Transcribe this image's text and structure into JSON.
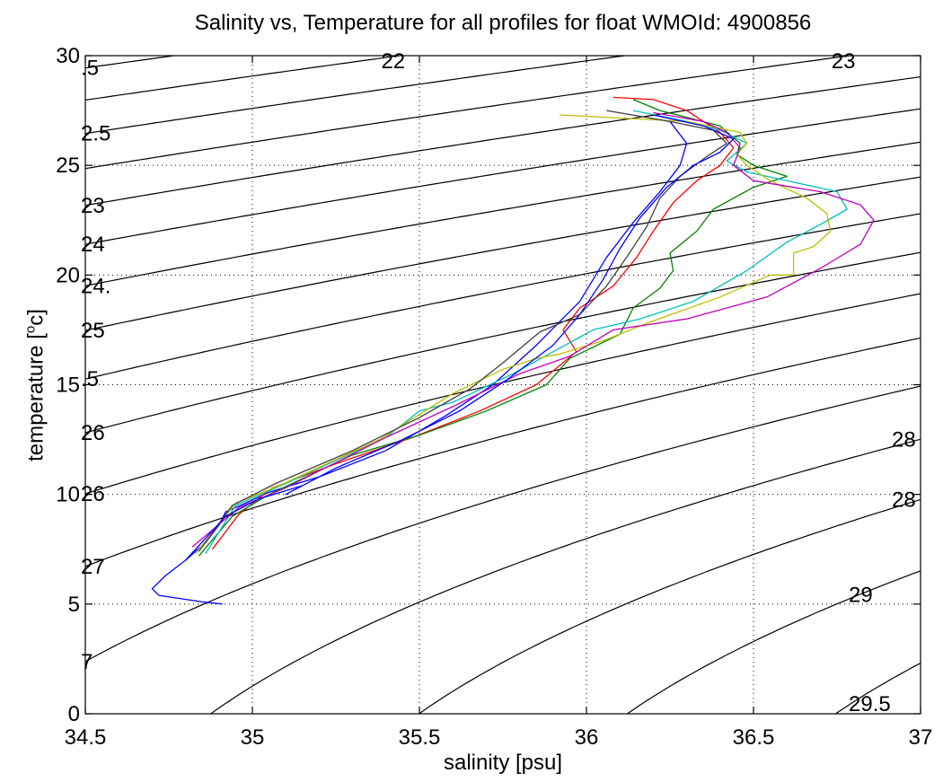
{
  "chart_data": {
    "type": "line",
    "title": "Salinity vs, Temperature for all profiles for float WMOId: 4900856",
    "xlabel": "salinity [psu]",
    "ylabel_main": "temperature [",
    "ylabel_sup": "o",
    "ylabel_end": "c]",
    "xlim": [
      34.5,
      37
    ],
    "ylim": [
      0,
      30
    ],
    "xticks": [
      34.5,
      35,
      35.5,
      36,
      36.5,
      37
    ],
    "xtick_labels": [
      "34.5",
      "35",
      "35.5",
      "36",
      "36.5",
      "37"
    ],
    "yticks": [
      0,
      5,
      10,
      15,
      20,
      25,
      30
    ],
    "ytick_labels": [
      "0",
      "5",
      "10",
      "15",
      "20",
      "25",
      "30"
    ],
    "grid": true,
    "density_contours": [
      {
        "level": 21.5,
        "label": ".5"
      },
      {
        "level": 22,
        "label": "22"
      },
      {
        "level": 22.5,
        "label": "2.5"
      },
      {
        "level": 23,
        "label": "23"
      },
      {
        "level": 23.5,
        "label": "23"
      },
      {
        "level": 24,
        "label": "24"
      },
      {
        "level": 24.5,
        "label": "24."
      },
      {
        "level": 25,
        "label": "25"
      },
      {
        "level": 25.5,
        "label": ".5"
      },
      {
        "level": 26,
        "label": "26"
      },
      {
        "level": 26.5,
        "label": "26"
      },
      {
        "level": 27,
        "label": "27"
      },
      {
        "level": 27.5,
        "label": "7"
      },
      {
        "level": 28,
        "label": "28"
      },
      {
        "level": 28.5,
        "label": "28"
      },
      {
        "level": 29,
        "label": "29"
      },
      {
        "level": 29.5,
        "label": "29.5"
      }
    ],
    "series": [
      {
        "color": "#0000ff",
        "points": [
          [
            34.91,
            5.0
          ],
          [
            34.85,
            5.1
          ],
          [
            34.72,
            5.4
          ],
          [
            34.7,
            5.7
          ],
          [
            34.74,
            6.3
          ],
          [
            34.8,
            7.0
          ],
          [
            34.86,
            7.8
          ],
          [
            34.9,
            8.6
          ],
          [
            34.92,
            9.2
          ],
          [
            34.98,
            9.6
          ],
          [
            35.05,
            10.1
          ],
          [
            35.2,
            10.8
          ],
          [
            35.4,
            12.0
          ],
          [
            35.58,
            13.6
          ],
          [
            35.72,
            15.0
          ],
          [
            35.85,
            16.8
          ],
          [
            35.98,
            18.8
          ],
          [
            36.06,
            20.8
          ],
          [
            36.14,
            22.4
          ],
          [
            36.22,
            23.8
          ],
          [
            36.28,
            25.0
          ],
          [
            36.3,
            26.0
          ],
          [
            36.25,
            27.0
          ]
        ]
      },
      {
        "color": "#ff0000",
        "points": [
          [
            34.88,
            7.5
          ],
          [
            34.96,
            9.1
          ],
          [
            35.06,
            10.3
          ],
          [
            35.25,
            11.4
          ],
          [
            35.48,
            12.6
          ],
          [
            35.68,
            13.8
          ],
          [
            35.85,
            15.0
          ],
          [
            35.97,
            16.5
          ],
          [
            35.93,
            17.5
          ],
          [
            35.98,
            18.5
          ],
          [
            36.08,
            19.5
          ],
          [
            36.15,
            20.8
          ],
          [
            36.2,
            22.0
          ],
          [
            36.26,
            23.3
          ],
          [
            36.33,
            24.3
          ],
          [
            36.4,
            25.0
          ],
          [
            36.44,
            25.8
          ],
          [
            36.4,
            26.5
          ],
          [
            36.3,
            27.5
          ],
          [
            36.2,
            28.0
          ],
          [
            36.08,
            28.1
          ]
        ]
      },
      {
        "color": "#008000",
        "points": [
          [
            34.84,
            7.2
          ],
          [
            34.94,
            9.0
          ],
          [
            35.05,
            10.0
          ],
          [
            35.3,
            11.8
          ],
          [
            35.5,
            12.7
          ],
          [
            35.7,
            13.8
          ],
          [
            35.88,
            15.0
          ],
          [
            35.95,
            16.2
          ],
          [
            36.1,
            17.3
          ],
          [
            36.14,
            18.5
          ],
          [
            36.22,
            19.4
          ],
          [
            36.26,
            20.2
          ],
          [
            36.25,
            21.0
          ],
          [
            36.33,
            22.0
          ],
          [
            36.38,
            23.0
          ],
          [
            36.5,
            24.0
          ],
          [
            36.6,
            24.5
          ],
          [
            36.5,
            25.0
          ],
          [
            36.45,
            25.5
          ],
          [
            36.46,
            26.0
          ],
          [
            36.4,
            26.8
          ],
          [
            36.22,
            27.5
          ],
          [
            36.14,
            28.0
          ]
        ]
      },
      {
        "color": "#00bfbf",
        "points": [
          [
            34.86,
            7.3
          ],
          [
            34.95,
            9.5
          ],
          [
            35.1,
            10.5
          ],
          [
            35.4,
            12.6
          ],
          [
            35.5,
            13.8
          ],
          [
            35.6,
            14.2
          ],
          [
            35.78,
            15.5
          ],
          [
            35.9,
            16.5
          ],
          [
            36.02,
            17.5
          ],
          [
            36.16,
            18.0
          ],
          [
            36.32,
            18.8
          ],
          [
            36.48,
            20.2
          ],
          [
            36.6,
            21.5
          ],
          [
            36.7,
            22.3
          ],
          [
            36.78,
            23.0
          ],
          [
            36.75,
            23.8
          ],
          [
            36.6,
            24.3
          ],
          [
            36.48,
            24.7
          ],
          [
            36.42,
            25.2
          ],
          [
            36.48,
            26.0
          ],
          [
            36.4,
            26.6
          ],
          [
            36.3,
            27.0
          ],
          [
            36.14,
            27.5
          ]
        ]
      },
      {
        "color": "#bfbf00",
        "points": [
          [
            34.83,
            7.3
          ],
          [
            34.95,
            9.6
          ],
          [
            35.08,
            10.4
          ],
          [
            35.38,
            12.5
          ],
          [
            35.6,
            14.6
          ],
          [
            35.75,
            15.7
          ],
          [
            35.85,
            16.2
          ],
          [
            35.92,
            16.4
          ],
          [
            36.05,
            17.0
          ],
          [
            36.18,
            17.8
          ],
          [
            36.4,
            19.0
          ],
          [
            36.55,
            20.0
          ],
          [
            36.62,
            20.0
          ],
          [
            36.62,
            21.0
          ],
          [
            36.68,
            21.3
          ],
          [
            36.73,
            22.0
          ],
          [
            36.72,
            22.8
          ],
          [
            36.66,
            23.5
          ],
          [
            36.55,
            24.3
          ],
          [
            36.48,
            25.0
          ],
          [
            36.45,
            25.5
          ],
          [
            36.48,
            26.0
          ],
          [
            36.46,
            26.5
          ],
          [
            36.3,
            27.0
          ],
          [
            35.92,
            27.3
          ]
        ]
      },
      {
        "color": "#bf00bf",
        "points": [
          [
            34.82,
            7.6
          ],
          [
            34.96,
            9.4
          ],
          [
            35.1,
            10.3
          ],
          [
            35.4,
            12.6
          ],
          [
            35.6,
            14.0
          ],
          [
            35.8,
            15.5
          ],
          [
            35.95,
            16.3
          ],
          [
            36.08,
            17.5
          ],
          [
            36.3,
            18.0
          ],
          [
            36.54,
            19.0
          ],
          [
            36.7,
            20.3
          ],
          [
            36.82,
            21.4
          ],
          [
            36.86,
            22.5
          ],
          [
            36.82,
            23.2
          ],
          [
            36.7,
            23.8
          ],
          [
            36.5,
            24.3
          ],
          [
            36.44,
            25.0
          ],
          [
            36.46,
            25.8
          ],
          [
            36.42,
            26.5
          ],
          [
            36.35,
            27.0
          ],
          [
            36.2,
            27.4
          ]
        ]
      },
      {
        "color": "#404040",
        "points": [
          [
            34.84,
            7.4
          ],
          [
            34.94,
            9.5
          ],
          [
            35.07,
            10.5
          ],
          [
            35.3,
            12.0
          ],
          [
            35.5,
            13.5
          ],
          [
            35.65,
            14.8
          ],
          [
            35.75,
            16.0
          ],
          [
            35.86,
            17.4
          ],
          [
            35.98,
            18.2
          ],
          [
            36.06,
            19.5
          ],
          [
            36.12,
            20.8
          ],
          [
            36.18,
            22.2
          ],
          [
            36.22,
            23.5
          ],
          [
            36.28,
            24.5
          ],
          [
            36.36,
            25.4
          ],
          [
            36.42,
            26.0
          ],
          [
            36.38,
            26.6
          ],
          [
            36.25,
            27.0
          ],
          [
            36.06,
            27.5
          ]
        ]
      },
      {
        "color": "#0000ff",
        "points": [
          [
            34.8,
            7.0
          ],
          [
            34.92,
            9.0
          ],
          [
            35.02,
            9.8
          ],
          [
            35.15,
            10.4
          ],
          [
            35.1,
            10.0
          ],
          [
            35.25,
            11.2
          ],
          [
            35.45,
            12.5
          ],
          [
            35.62,
            13.8
          ],
          [
            35.76,
            15.2
          ],
          [
            35.9,
            16.8
          ],
          [
            35.98,
            18.2
          ],
          [
            36.05,
            19.8
          ],
          [
            36.1,
            21.2
          ],
          [
            36.16,
            22.6
          ],
          [
            36.24,
            24.0
          ],
          [
            36.32,
            25.0
          ],
          [
            36.4,
            25.6
          ],
          [
            36.44,
            26.2
          ],
          [
            36.35,
            26.8
          ],
          [
            36.2,
            27.3
          ]
        ]
      }
    ]
  }
}
